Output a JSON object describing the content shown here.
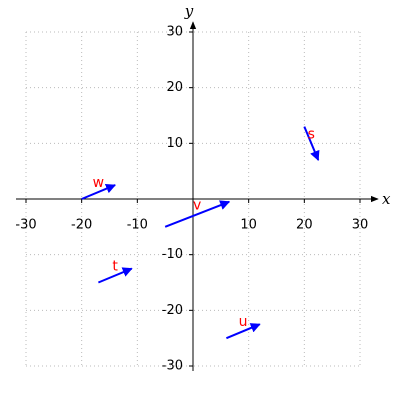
{
  "chart_data": {
    "type": "vector",
    "x_label": "x",
    "y_label": "y",
    "xlim": [
      -30,
      30
    ],
    "ylim": [
      -30,
      30
    ],
    "xticks": [
      -30,
      -20,
      -10,
      10,
      20,
      30
    ],
    "yticks": [
      -30,
      -20,
      -10,
      10,
      20,
      30
    ],
    "grid": true,
    "color": "#0000ff",
    "label_color": "#ff0000",
    "series": [
      {
        "name": "s",
        "x": 20,
        "y": 13,
        "dx": 2.5,
        "dy": -6
      },
      {
        "name": "w",
        "x": -20,
        "y": 0,
        "dx": 6,
        "dy": 2.5
      },
      {
        "name": "v",
        "x": -5,
        "y": -5,
        "dx": 11.5,
        "dy": 4.5
      },
      {
        "name": "t",
        "x": -17,
        "y": -15,
        "dx": 6,
        "dy": 2.5
      },
      {
        "name": "u",
        "x": 6,
        "y": -25,
        "dx": 6,
        "dy": 2.5
      }
    ]
  }
}
